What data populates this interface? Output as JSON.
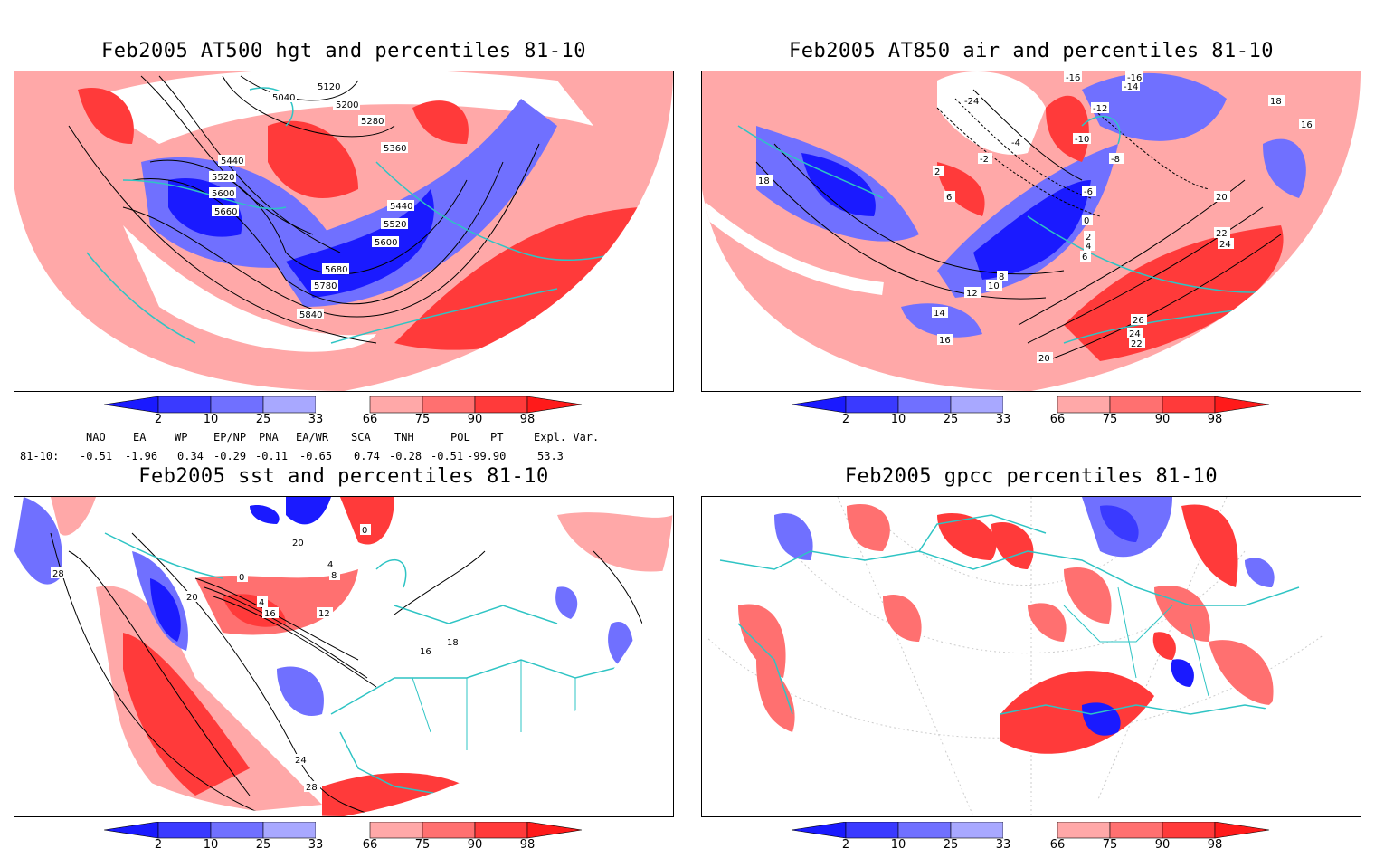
{
  "panels": [
    {
      "title": "Feb2005 AT500 hgt and percentiles 81-10",
      "contour_labels": [
        "5040",
        "5120",
        "5200",
        "5280",
        "5360",
        "5440",
        "5520",
        "5600",
        "5660",
        "5440",
        "5520",
        "5600",
        "5680",
        "5780",
        "5840"
      ]
    },
    {
      "title": "Feb2005 AT850 air and percentiles 81-10",
      "contour_labels": [
        "-16",
        "-12",
        "-4",
        "-2",
        "6",
        "2",
        "-6",
        "0",
        "2",
        "4",
        "6",
        "8",
        "10",
        "12",
        "14",
        "16",
        "18",
        "18",
        "20",
        "22",
        "24",
        "26",
        "24",
        "22",
        "20",
        "16",
        "-16",
        "-14",
        "-24",
        "-10",
        "-8"
      ]
    },
    {
      "title": "Feb2005 sst and percentiles 81-10",
      "contour_labels": [
        "28",
        "20",
        "0",
        "4",
        "8",
        "16",
        "12",
        "4",
        "0",
        "20",
        "24",
        "28",
        "18",
        "16"
      ]
    },
    {
      "title": "Feb2005 gpcc percentiles 81-10",
      "contour_labels": []
    }
  ],
  "colorbar": {
    "labels": [
      "2",
      "10",
      "25",
      "33",
      "66",
      "75",
      "90",
      "98"
    ],
    "colors": [
      "#1a1aff",
      "#3a3aff",
      "#7070ff",
      "#a8a8ff",
      "#ffffff",
      "#ffa8a8",
      "#ff7070",
      "#ff3a3a",
      "#ff1a1a"
    ]
  },
  "indices": {
    "header": [
      "NAO",
      "EA",
      "WP",
      "EP/NP",
      "PNA",
      "EA/WR",
      "SCA",
      "TNH",
      "POL",
      "PT",
      "Expl. Var."
    ],
    "row_label": "81-10:",
    "values": [
      "-0.51",
      "-1.96",
      "0.34",
      "-0.29",
      "-0.11",
      "-0.65",
      "0.74",
      "-0.28",
      "-0.51",
      "-99.90",
      "53.3"
    ]
  }
}
